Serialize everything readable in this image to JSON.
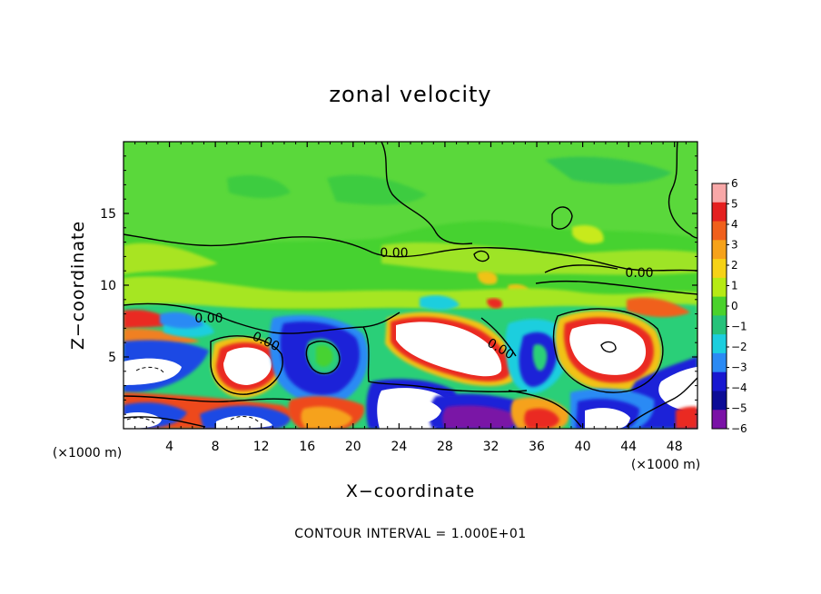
{
  "chart_data": {
    "type": "heatmap",
    "title": "zonal velocity",
    "xlabel": "X−coordinate",
    "ylabel": "Z−coordinate",
    "x_unit_label": "(×1000 m)",
    "xlim": [
      0,
      50
    ],
    "ylim": [
      0,
      20
    ],
    "x_ticks": [
      4,
      8,
      12,
      16,
      20,
      24,
      28,
      32,
      36,
      40,
      44,
      48
    ],
    "y_ticks": [
      5,
      10,
      15
    ],
    "colorbar": {
      "levels": [
        6,
        5,
        4,
        3,
        2,
        1,
        0,
        -1,
        -2,
        -3,
        -4,
        -5,
        -6
      ],
      "labels": [
        "6",
        "5",
        "4",
        "3",
        "2",
        "1",
        "0",
        "−1",
        "−2",
        "−3",
        "−4",
        "−5",
        "−6"
      ],
      "colors": [
        "#f8a8a8",
        "#e42020",
        "#f0601c",
        "#f6a21a",
        "#f6d216",
        "#b6ea14",
        "#4ad22c",
        "#26c27a",
        "#1ccede",
        "#2a8af4",
        "#1818d0",
        "#0c0c96",
        "#7a12a6"
      ]
    },
    "contour_labels": [
      "0.00",
      "0.00",
      "0.00",
      "0.00",
      "0.00"
    ],
    "contour_interval_text": "CONTOUR INTERVAL = 1.000E+01",
    "grid": false
  }
}
